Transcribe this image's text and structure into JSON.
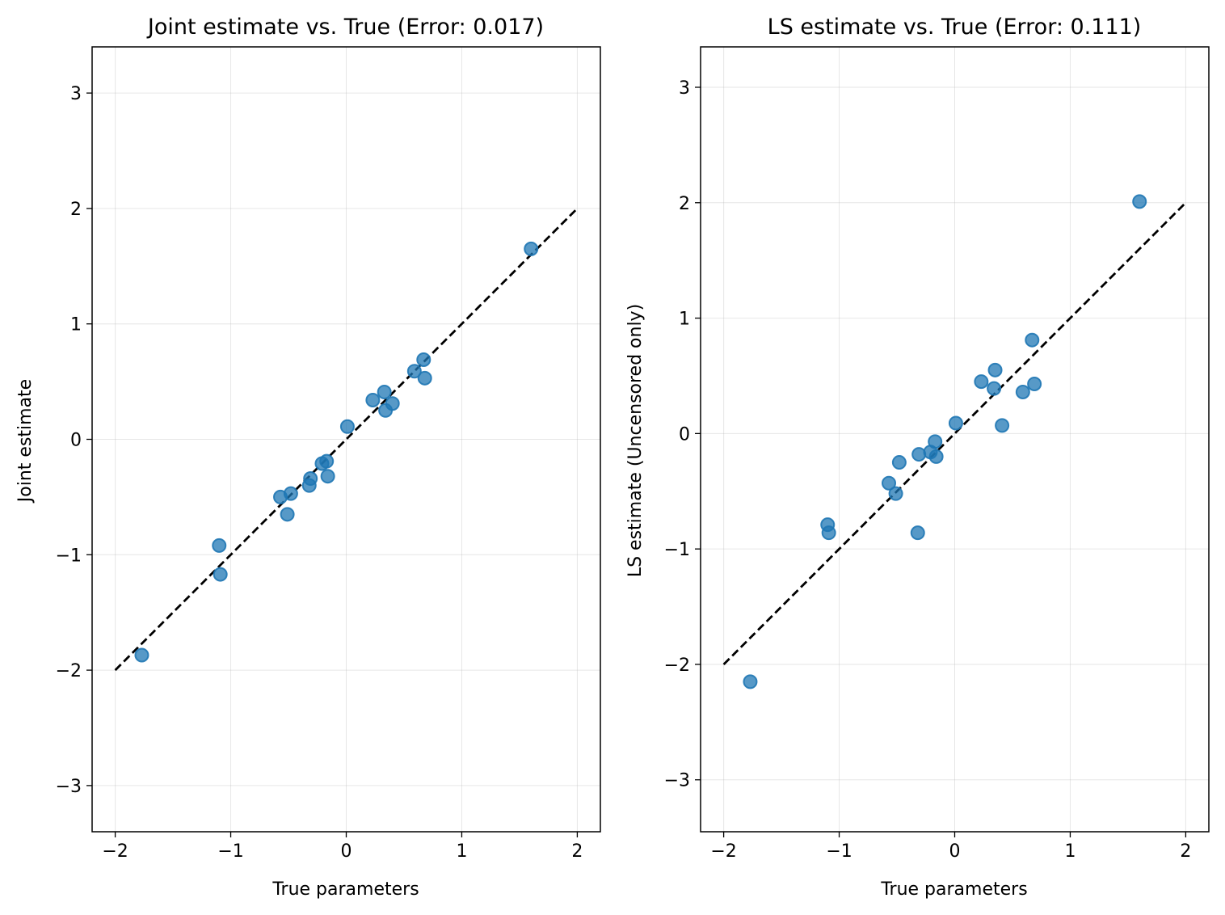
{
  "chart_data": [
    {
      "type": "scatter",
      "title": "Joint estimate vs. True (Error: 0.017)",
      "xlabel": "True parameters",
      "ylabel": "Joint estimate",
      "xlim": [
        -2.2,
        2.2
      ],
      "ylim": [
        -3.4,
        3.4
      ],
      "xticks": [
        -2,
        -1,
        0,
        1,
        2
      ],
      "yticks": [
        -3,
        -2,
        -1,
        0,
        1,
        2,
        3
      ],
      "xtick_labels": [
        "−2",
        "−1",
        "0",
        "1",
        "2"
      ],
      "ytick_labels": [
        "−3",
        "−2",
        "−1",
        "0",
        "1",
        "2",
        "3"
      ],
      "grid": true,
      "reference_line": {
        "x": [
          -2,
          2
        ],
        "y": [
          -2,
          2
        ],
        "style": "dashed",
        "color": "#000000"
      },
      "marker_color": "#1f77b4",
      "points": [
        {
          "x": -1.77,
          "y": -1.87
        },
        {
          "x": -1.1,
          "y": -0.92
        },
        {
          "x": -1.09,
          "y": -1.17
        },
        {
          "x": -0.57,
          "y": -0.5
        },
        {
          "x": -0.51,
          "y": -0.65
        },
        {
          "x": -0.48,
          "y": -0.47
        },
        {
          "x": -0.32,
          "y": -0.4
        },
        {
          "x": -0.31,
          "y": -0.34
        },
        {
          "x": -0.21,
          "y": -0.21
        },
        {
          "x": -0.17,
          "y": -0.19
        },
        {
          "x": -0.16,
          "y": -0.32
        },
        {
          "x": 0.01,
          "y": 0.11
        },
        {
          "x": 0.23,
          "y": 0.34
        },
        {
          "x": 0.33,
          "y": 0.41
        },
        {
          "x": 0.34,
          "y": 0.25
        },
        {
          "x": 0.4,
          "y": 0.31
        },
        {
          "x": 0.59,
          "y": 0.59
        },
        {
          "x": 0.67,
          "y": 0.69
        },
        {
          "x": 0.68,
          "y": 0.53
        },
        {
          "x": 1.6,
          "y": 1.65
        }
      ]
    },
    {
      "type": "scatter",
      "title": "LS estimate vs. True (Error: 0.111)",
      "xlabel": "True parameters",
      "ylabel": "LS estimate (Uncensored only)",
      "xlim": [
        -2.2,
        2.2
      ],
      "ylim": [
        -3.45,
        3.35
      ],
      "xticks": [
        -2,
        -1,
        0,
        1,
        2
      ],
      "yticks": [
        -3,
        -2,
        -1,
        0,
        1,
        2,
        3
      ],
      "xtick_labels": [
        "−2",
        "−1",
        "0",
        "1",
        "2"
      ],
      "ytick_labels": [
        "−3",
        "−2",
        "−1",
        "0",
        "1",
        "2",
        "3"
      ],
      "grid": true,
      "reference_line": {
        "x": [
          -2,
          2
        ],
        "y": [
          -2,
          2
        ],
        "style": "dashed",
        "color": "#000000"
      },
      "marker_color": "#1f77b4",
      "points": [
        {
          "x": -1.77,
          "y": -2.15
        },
        {
          "x": -1.1,
          "y": -0.79
        },
        {
          "x": -1.09,
          "y": -0.86
        },
        {
          "x": -0.57,
          "y": -0.43
        },
        {
          "x": -0.51,
          "y": -0.52
        },
        {
          "x": -0.48,
          "y": -0.25
        },
        {
          "x": -0.32,
          "y": -0.86
        },
        {
          "x": -0.31,
          "y": -0.18
        },
        {
          "x": -0.21,
          "y": -0.16
        },
        {
          "x": -0.17,
          "y": -0.07
        },
        {
          "x": -0.16,
          "y": -0.2
        },
        {
          "x": 0.01,
          "y": 0.09
        },
        {
          "x": 0.23,
          "y": 0.45
        },
        {
          "x": 0.34,
          "y": 0.39
        },
        {
          "x": 0.35,
          "y": 0.55
        },
        {
          "x": 0.41,
          "y": 0.07
        },
        {
          "x": 0.59,
          "y": 0.36
        },
        {
          "x": 0.67,
          "y": 0.81
        },
        {
          "x": 0.69,
          "y": 0.43
        },
        {
          "x": 1.6,
          "y": 2.01
        }
      ]
    }
  ]
}
